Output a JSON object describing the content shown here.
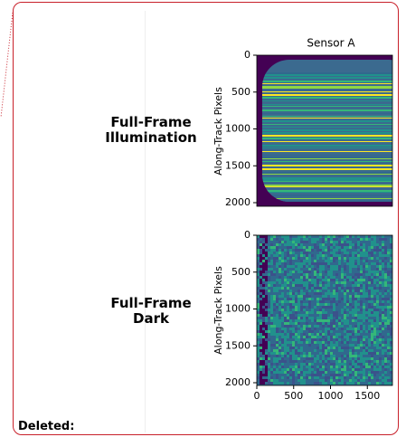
{
  "panels": [
    {
      "label": "Full-Frame Illumination",
      "title": "Sensor A",
      "ylabel": "Along-Track Pixels",
      "yticks": [
        0,
        500,
        1000,
        1500,
        2000
      ]
    },
    {
      "label": "Full-Frame Dark",
      "ylabel": "Along-Track Pixels",
      "yticks": [
        0,
        500,
        1000,
        1500,
        2000
      ],
      "xticks": [
        0,
        500,
        1000,
        1500
      ]
    }
  ],
  "footer": "Deleted:"
}
